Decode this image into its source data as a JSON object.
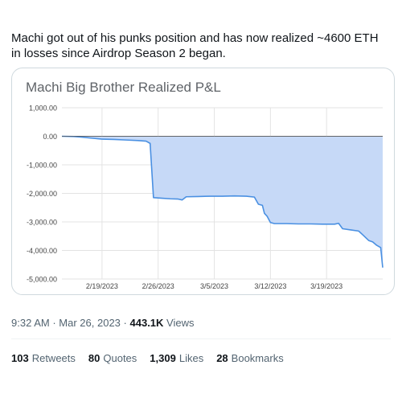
{
  "tweet": {
    "text": "Machi got out of his punks position and has now realized ~4600 ETH in losses since Airdrop Season 2 began.",
    "time": "9:32 AM",
    "separator": "·",
    "date": "Mar 26, 2023",
    "views_count": "443.1K",
    "views_label": "Views",
    "stats": [
      {
        "count": "103",
        "label": "Retweets"
      },
      {
        "count": "80",
        "label": "Quotes"
      },
      {
        "count": "1,309",
        "label": "Likes"
      },
      {
        "count": "28",
        "label": "Bookmarks"
      }
    ]
  },
  "chart_data": {
    "type": "area",
    "title": "Machi Big Brother Realized P&L",
    "ylim": [
      -5000,
      1000
    ],
    "yticks": [
      1000,
      0,
      -1000,
      -2000,
      -3000,
      -4000,
      -5000
    ],
    "ytick_labels": [
      "1,000.00",
      "0.00",
      "-1,000.00",
      "-2,000.00",
      "-3,000.00",
      "-4,000.00",
      "-5,000.00"
    ],
    "xlim": [
      "2023-02-14",
      "2023-03-26"
    ],
    "xticks": [
      "2023-02-19",
      "2023-02-26",
      "2023-03-05",
      "2023-03-12",
      "2023-03-19"
    ],
    "xtick_labels": [
      "2/19/2023",
      "2/26/2023",
      "3/5/2023",
      "3/12/2023",
      "3/19/2023"
    ],
    "grid": true,
    "colors": {
      "line": "#4a90e2",
      "fill": "#c6d9f7",
      "grid": "#e3e3e3",
      "zero": "#555555"
    },
    "series": [
      {
        "points": [
          [
            "2023-02-14T00",
            0
          ],
          [
            "2023-02-15T12",
            -10
          ],
          [
            "2023-02-16T12",
            -30
          ],
          [
            "2023-02-17T12",
            -60
          ],
          [
            "2023-02-19T00",
            -100
          ],
          [
            "2023-02-20T12",
            -110
          ],
          [
            "2023-02-22T00",
            -130
          ],
          [
            "2023-02-23T12",
            -150
          ],
          [
            "2023-02-24T12",
            -170
          ],
          [
            "2023-02-25T00",
            -250
          ],
          [
            "2023-02-25T10",
            -2150
          ],
          [
            "2023-02-26T12",
            -2170
          ],
          [
            "2023-02-27T12",
            -2190
          ],
          [
            "2023-02-28T12",
            -2200
          ],
          [
            "2023-03-01T00",
            -2230
          ],
          [
            "2023-03-01T12",
            -2120
          ],
          [
            "2023-03-03T00",
            -2110
          ],
          [
            "2023-03-04T12",
            -2100
          ],
          [
            "2023-03-06T00",
            -2100
          ],
          [
            "2023-03-07T12",
            -2090
          ],
          [
            "2023-03-09T00",
            -2100
          ],
          [
            "2023-03-10T00",
            -2130
          ],
          [
            "2023-03-10T12",
            -2380
          ],
          [
            "2023-03-11T00",
            -2420
          ],
          [
            "2023-03-11T06",
            -2700
          ],
          [
            "2023-03-11T14",
            -2800
          ],
          [
            "2023-03-12T00",
            -3020
          ],
          [
            "2023-03-12T12",
            -3060
          ],
          [
            "2023-03-14T00",
            -3060
          ],
          [
            "2023-03-15T12",
            -3070
          ],
          [
            "2023-03-17T00",
            -3070
          ],
          [
            "2023-03-18T12",
            -3080
          ],
          [
            "2023-03-20T00",
            -3080
          ],
          [
            "2023-03-20T12",
            -3050
          ],
          [
            "2023-03-21T00",
            -3240
          ],
          [
            "2023-03-22T00",
            -3280
          ],
          [
            "2023-03-23T00",
            -3320
          ],
          [
            "2023-03-23T12",
            -3450
          ],
          [
            "2023-03-24T06",
            -3650
          ],
          [
            "2023-03-24T18",
            -3700
          ],
          [
            "2023-03-25T06",
            -3820
          ],
          [
            "2023-03-25T18",
            -3900
          ],
          [
            "2023-03-26T00",
            -4600
          ]
        ]
      }
    ]
  }
}
